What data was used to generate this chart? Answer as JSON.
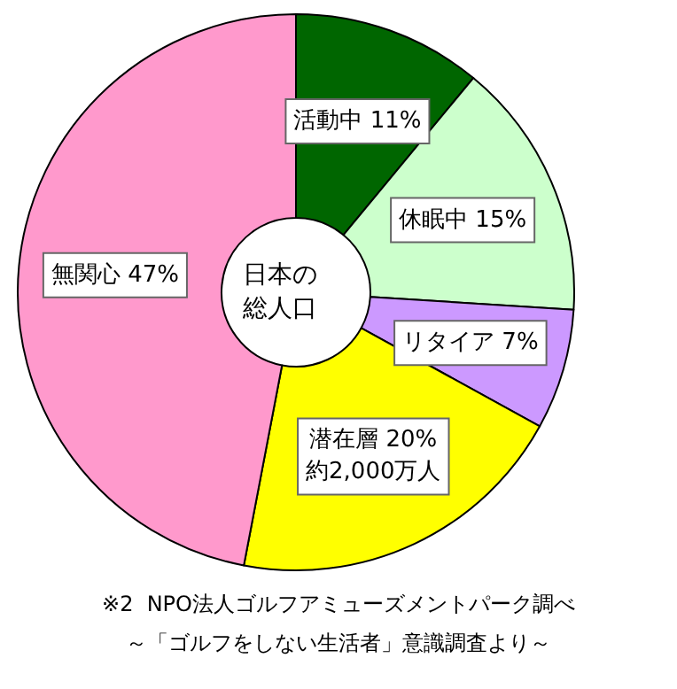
{
  "chart_data": {
    "type": "donut",
    "categories": [
      "活動中",
      "休眠中",
      "リタイア",
      "潜在層",
      "無関心"
    ],
    "values": [
      11,
      15,
      7,
      20,
      47
    ],
    "colors": [
      "#006600",
      "#ccffcc",
      "#cc99ff",
      "#ffff00",
      "#ff99cc"
    ],
    "value_labels": [
      "11%",
      "15%",
      "7%",
      "20%\n約2,000万人",
      "47%"
    ],
    "legend": false,
    "annotations": [
      "日本の総人口",
      "※2  NPO法人ゴルフアミューズメントパーク調べ",
      "～「ゴルフをしない生活者」意識調査より～"
    ]
  }
}
